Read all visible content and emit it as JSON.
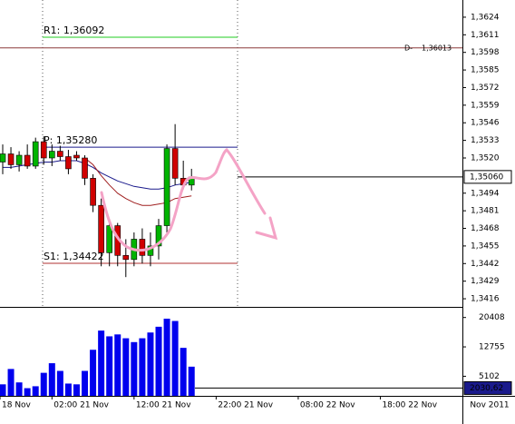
{
  "chart_data": {
    "type": "candlestick",
    "x": [
      0,
      1,
      2,
      3,
      4,
      5,
      6,
      7,
      8,
      9,
      10,
      11,
      12,
      13,
      14,
      15,
      16,
      17,
      18,
      19,
      20,
      21,
      22,
      23
    ],
    "open": [
      1.3517,
      1.3523,
      1.3515,
      1.3522,
      1.3514,
      1.3532,
      1.352,
      1.3525,
      1.3521,
      1.3522,
      1.352,
      1.3505,
      1.3485,
      1.345,
      1.347,
      1.3448,
      1.3445,
      1.346,
      1.3448,
      1.3455,
      1.347,
      1.3527,
      1.3505,
      1.35
    ],
    "high": [
      1.353,
      1.3528,
      1.3525,
      1.353,
      1.3535,
      1.3536,
      1.353,
      1.3529,
      1.3526,
      1.3525,
      1.3522,
      1.3508,
      1.349,
      1.3475,
      1.3472,
      1.346,
      1.3465,
      1.3468,
      1.3465,
      1.3475,
      1.353,
      1.3545,
      1.3518,
      1.3512
    ],
    "low": [
      1.3508,
      1.3512,
      1.351,
      1.3512,
      1.3512,
      1.3515,
      1.3514,
      1.3518,
      1.3508,
      1.3518,
      1.35,
      1.348,
      1.344,
      1.344,
      1.344,
      1.3432,
      1.344,
      1.3442,
      1.344,
      1.3445,
      1.3465,
      1.35,
      1.3497,
      1.3496
    ],
    "close": [
      1.3523,
      1.3515,
      1.3522,
      1.3514,
      1.3532,
      1.352,
      1.3525,
      1.3521,
      1.3512,
      1.352,
      1.3505,
      1.3485,
      1.345,
      1.347,
      1.3448,
      1.3445,
      1.346,
      1.3448,
      1.3455,
      1.347,
      1.3527,
      1.3505,
      1.35,
      1.3506
    ],
    "up_color": "#00b400",
    "down_color": "#d00000",
    "xlim": [
      -0.33,
      56
    ],
    "xticks": [
      {
        "value": -0.33,
        "label": "18 Nov"
      },
      {
        "value": 6,
        "label": "02:00 21 Nov"
      },
      {
        "value": 16,
        "label": "12:00 21 Nov"
      },
      {
        "value": 26,
        "label": "22:00 21 Nov"
      },
      {
        "value": 36,
        "label": "08:00 22 Nov"
      },
      {
        "value": 46,
        "label": "18:00 22 Nov"
      }
    ],
    "period_label": "Nov 2011",
    "ylim": [
      1.341,
      1.36367
    ],
    "yticks": [
      {
        "value": 1.3416,
        "label": "1,3416"
      },
      {
        "value": 1.3429,
        "label": "1,3429"
      },
      {
        "value": 1.3442,
        "label": "1,3442"
      },
      {
        "value": 1.3455,
        "label": "1,3455"
      },
      {
        "value": 1.3468,
        "label": "1,3468"
      },
      {
        "value": 1.3481,
        "label": "1,3481"
      },
      {
        "value": 1.3494,
        "label": "1,3494"
      },
      {
        "value": 1.352,
        "label": "1,3520"
      },
      {
        "value": 1.3533,
        "label": "1,3533"
      },
      {
        "value": 1.3546,
        "label": "1,3546"
      },
      {
        "value": 1.3559,
        "label": "1,3559"
      },
      {
        "value": 1.3572,
        "label": "1,3572"
      },
      {
        "value": 1.3585,
        "label": "1,3585"
      },
      {
        "value": 1.3598,
        "label": "1,3598"
      },
      {
        "value": 1.3611,
        "label": "1,3611"
      },
      {
        "value": 1.3624,
        "label": "1,3624"
      }
    ],
    "overlays": [
      {
        "color": "#1a1a8c",
        "values": [
          1.3513,
          1.3513,
          1.3514,
          1.3515,
          1.3516,
          1.3517,
          1.3517,
          1.3518,
          1.3518,
          1.3518,
          1.3516,
          1.3513,
          1.3509,
          1.3506,
          1.3503,
          1.3501,
          1.3499,
          1.3498,
          1.3497,
          1.3497,
          1.3498,
          1.35,
          1.3501,
          1.3502
        ]
      },
      {
        "color": "#a02020",
        "values": [
          null,
          null,
          null,
          null,
          null,
          null,
          null,
          null,
          null,
          null,
          1.352,
          1.3515,
          1.3507,
          1.35,
          1.3494,
          1.349,
          1.3487,
          1.3485,
          1.3485,
          1.3486,
          1.3487,
          1.349,
          1.3491,
          1.3492
        ]
      }
    ],
    "levels": [
      {
        "label": "R1: 1,36092",
        "value": 1.36092,
        "color": "#22cc22"
      },
      {
        "label": "P: 1,35280",
        "value": 1.3528,
        "color": "#1a1a8c"
      },
      {
        "label": "S1: 1,34422",
        "value": 1.34422,
        "color": "#b03030"
      }
    ],
    "pivot_line": {
      "label": "D-",
      "value": 1.36013,
      "value_label": "1,36013",
      "color": "#8b3a3a"
    },
    "last_price": {
      "value": 1.3506,
      "value_label": "1,35060"
    },
    "volume": {
      "values": [
        3000,
        7000,
        3500,
        2000,
        2500,
        6000,
        8500,
        6500,
        3200,
        3000,
        6500,
        12000,
        17000,
        15500,
        16000,
        15000,
        14000,
        15000,
        16500,
        18000,
        20100,
        19500,
        12500,
        7600
      ],
      "color": "#0000ee",
      "ylim": [
        0,
        22700
      ],
      "yticks": [
        5102,
        12755,
        20408
      ],
      "last": {
        "value": 2030.62,
        "value_label": "2030,62"
      }
    }
  }
}
